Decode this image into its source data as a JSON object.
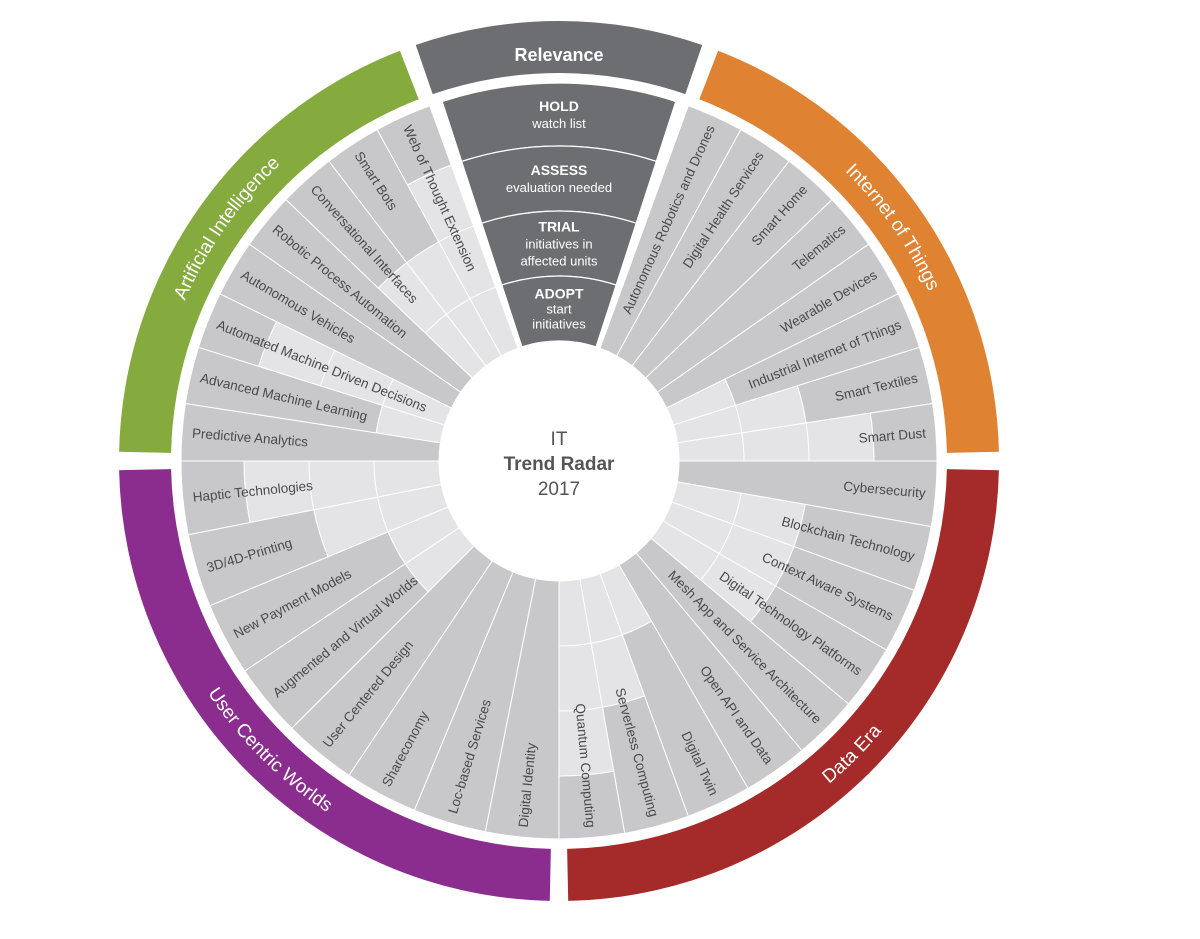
{
  "center": {
    "line1": "IT",
    "line2": "Trend Radar",
    "line3": "2017"
  },
  "relevance": {
    "title": "Relevance",
    "levels": [
      {
        "name": "HOLD",
        "desc": [
          "watch list"
        ]
      },
      {
        "name": "ASSESS",
        "desc": [
          "evaluation needed"
        ]
      },
      {
        "name": "TRIAL",
        "desc": [
          "initiatives in",
          "affected units"
        ]
      },
      {
        "name": "ADOPT",
        "desc": [
          "start",
          "initiatives"
        ]
      }
    ]
  },
  "categories": [
    {
      "name": "Artificial Intelligence",
      "color": "#85ab3f",
      "trends": [
        {
          "label": "Predictive Analytics",
          "level": "ADOPT"
        },
        {
          "label": "Advanced Machine Learning",
          "level": "TRIAL"
        },
        {
          "label": "Automated Machine Driven Decisions",
          "level": "HOLD"
        },
        {
          "label": "Autonomous Vehicles",
          "level": "ADOPT"
        },
        {
          "label": "Robotic Process Automation",
          "level": "ADOPT"
        },
        {
          "label": "Conversational Interfaces",
          "level": "ASSESS"
        },
        {
          "label": "Smart Bots",
          "level": "ASSESS"
        },
        {
          "label": "Web of Thought Extension",
          "level": "HOLD"
        }
      ]
    },
    {
      "name": "Internet of Things",
      "color": "#df8232",
      "trends": [
        {
          "label": "Autonomous Robotics and Drones",
          "level": "ADOPT"
        },
        {
          "label": "Digital Health Services",
          "level": "ADOPT"
        },
        {
          "label": "Smart Home",
          "level": "ADOPT"
        },
        {
          "label": "Telematics",
          "level": "ADOPT"
        },
        {
          "label": "Wearable Devices",
          "level": "ADOPT"
        },
        {
          "label": "Industrial Internet of Things",
          "level": "TRIAL"
        },
        {
          "label": "Smart Textiles",
          "level": "ASSESS"
        },
        {
          "label": "Smart Dust",
          "level": "HOLD"
        }
      ]
    },
    {
      "name": "Data Era",
      "color": "#a52a2a",
      "trends": [
        {
          "label": "Cybersecurity",
          "level": "ADOPT"
        },
        {
          "label": "Blockchain Technology",
          "level": "ASSESS"
        },
        {
          "label": "Context Aware Systems",
          "level": "ASSESS"
        },
        {
          "label": "Digital Technology Platforms",
          "level": "ASSESS"
        },
        {
          "label": "Mesh App and Service Architecture",
          "level": "ADOPT"
        },
        {
          "label": "Open API and Data",
          "level": "ADOPT"
        },
        {
          "label": "Digital Twin",
          "level": "TRIAL"
        },
        {
          "label": "Serverless Computing",
          "level": "ASSESS"
        },
        {
          "label": "Quantum Computing",
          "level": "HOLD"
        }
      ]
    },
    {
      "name": "User Centric Worlds",
      "color": "#8a2d8f",
      "trends": [
        {
          "label": "Digital Identity",
          "level": "ADOPT"
        },
        {
          "label": "Loc-based Services",
          "level": "ADOPT"
        },
        {
          "label": "Shareconomy",
          "level": "ADOPT"
        },
        {
          "label": "User Centered Design",
          "level": "ADOPT"
        },
        {
          "label": "Augmented and Virtual Worlds",
          "level": "TRIAL"
        },
        {
          "label": "New Payment Models",
          "level": "TRIAL"
        },
        {
          "label": "3D/4D-Printing",
          "level": "ASSESS"
        },
        {
          "label": "Haptic Technologies",
          "level": "HOLD"
        }
      ]
    }
  ],
  "colors": {
    "segment_filled": "#c8c8ca",
    "segment_empty": "#e4e4e6",
    "relevance": "#6d6e71",
    "center_text": "#555555"
  }
}
